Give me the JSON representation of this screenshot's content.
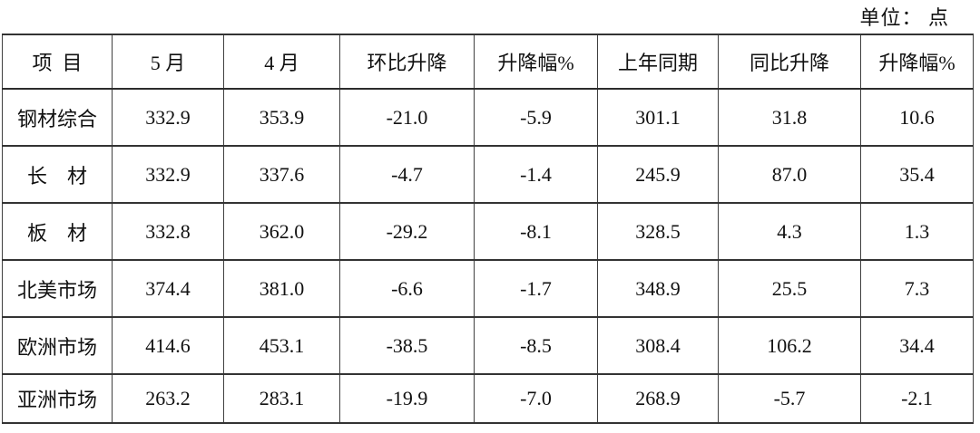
{
  "unit_label": "单位： 点",
  "colors": {
    "background": "#ffffff",
    "text": "#111111",
    "border": "#3a3a3a"
  },
  "table": {
    "headers": [
      "项  目",
      "5 月",
      "4 月",
      "环比升降",
      "升降幅%",
      "上年同期",
      "同比升降",
      "升降幅%"
    ],
    "rows": [
      {
        "label": "钢材综合",
        "cells": [
          "332.9",
          "353.9",
          "-21.0",
          "-5.9",
          "301.1",
          "31.8",
          "10.6"
        ]
      },
      {
        "label": "长　材",
        "cells": [
          "332.9",
          "337.6",
          "-4.7",
          "-1.4",
          "245.9",
          "87.0",
          "35.4"
        ]
      },
      {
        "label": "板　材",
        "cells": [
          "332.8",
          "362.0",
          "-29.2",
          "-8.1",
          "328.5",
          "4.3",
          "1.3"
        ]
      },
      {
        "label": "北美市场",
        "cells": [
          "374.4",
          "381.0",
          "-6.6",
          "-1.7",
          "348.9",
          "25.5",
          "7.3"
        ]
      },
      {
        "label": "欧洲市场",
        "cells": [
          "414.6",
          "453.1",
          "-38.5",
          "-8.5",
          "308.4",
          "106.2",
          "34.4"
        ]
      },
      {
        "label": "亚洲市场",
        "cells": [
          "263.2",
          "283.1",
          "-19.9",
          "-7.0",
          "268.9",
          "-5.7",
          "-2.1"
        ]
      }
    ]
  }
}
